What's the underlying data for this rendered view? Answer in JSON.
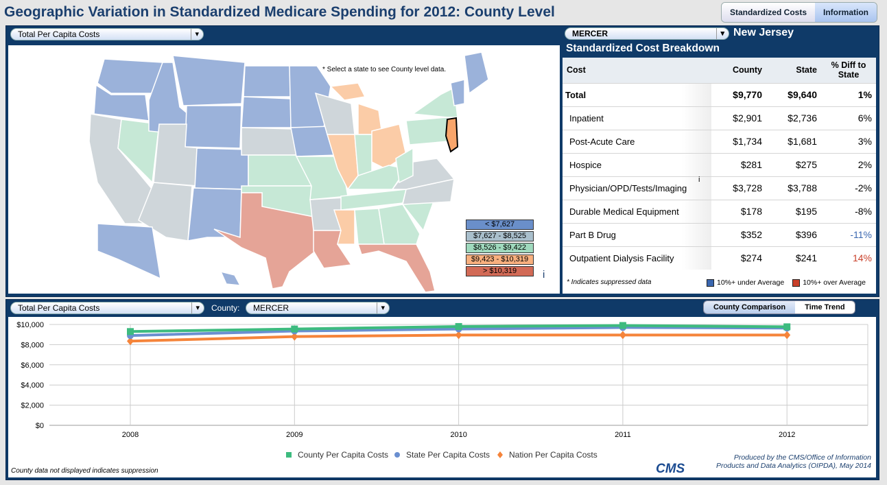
{
  "title": "Geographic Variation in Standardized Medicare Spending for 2012: County Level",
  "tabs": [
    "Standardized Costs",
    "Information"
  ],
  "map": {
    "measure": "Total Per Capita Costs",
    "note": "* Select a state to see County level data.",
    "info": "i",
    "legend": [
      {
        "label": "< $7,627",
        "color": "#6a8fca"
      },
      {
        "label": "$7,627 - $8,525",
        "color": "#a9bfcc"
      },
      {
        "label": "$8,526 - $9,422",
        "color": "#9fd9bd"
      },
      {
        "label": "$9,423 - $10,319",
        "color": "#f8b07f"
      },
      {
        "label": "> $10,319",
        "color": "#d26a56"
      }
    ]
  },
  "breakdown": {
    "county": "MERCER",
    "state": "New Jersey",
    "title": "Standardized Cost Breakdown",
    "headers": [
      "Cost",
      "County",
      "State",
      "% Diff to State"
    ],
    "rows": [
      [
        "Total",
        "$9,770",
        "$9,640",
        "1%"
      ],
      [
        "Inpatient",
        "$2,901",
        "$2,736",
        "6%"
      ],
      [
        "Post-Acute Care",
        "$1,734",
        "$1,681",
        "3%"
      ],
      [
        "Hospice",
        "$281",
        "$275",
        "2%"
      ],
      [
        "Physician/OPD/Tests/Imaging",
        "$3,728",
        "$3,788",
        "-2%"
      ],
      [
        "Durable Medical Equipment",
        "$178",
        "$195",
        "-8%"
      ],
      [
        "Part B Drug",
        "$352",
        "$396",
        "-11%"
      ],
      [
        "Outpatient Dialysis Facility",
        "$274",
        "$241",
        "14%"
      ]
    ],
    "physician_info": "i",
    "footnote": "* Indicates suppressed data",
    "under": "10%+ under Average",
    "over": "10%+ over Average",
    "under_color": "#3a67b0",
    "over_color": "#c9402a"
  },
  "trend": {
    "measure": "Total Per Capita Costs",
    "county_label": "County:",
    "county": "MERCER",
    "toggle": [
      "County Comparison",
      "Time Trend"
    ],
    "suppression_note": "County data not displayed indicates suppression",
    "credit1": "Produced by the CMS/Office of Information",
    "credit2": "Products and Data Analytics (OIPDA), May 2014",
    "logo": "CMS"
  },
  "chart_data": {
    "type": "line",
    "categories": [
      "2008",
      "2009",
      "2010",
      "2011",
      "2012"
    ],
    "ylim": [
      0,
      10000
    ],
    "yticks": [
      "$0",
      "$2,000",
      "$4,000",
      "$6,000",
      "$8,000",
      "$10,000"
    ],
    "grid": true,
    "legend": "bottom",
    "series": [
      {
        "name": "County Per Capita Costs",
        "color": "#3dbb7f",
        "marker": "square",
        "values": [
          9300,
          9550,
          9800,
          9900,
          9770
        ]
      },
      {
        "name": "State Per Capita Costs",
        "color": "#6a8fd0",
        "marker": "circle",
        "values": [
          8900,
          9350,
          9550,
          9700,
          9640
        ]
      },
      {
        "name": "Nation Per Capita Costs",
        "color": "#f5843a",
        "marker": "diamond",
        "values": [
          8350,
          8800,
          8950,
          8950,
          8950
        ]
      }
    ]
  }
}
